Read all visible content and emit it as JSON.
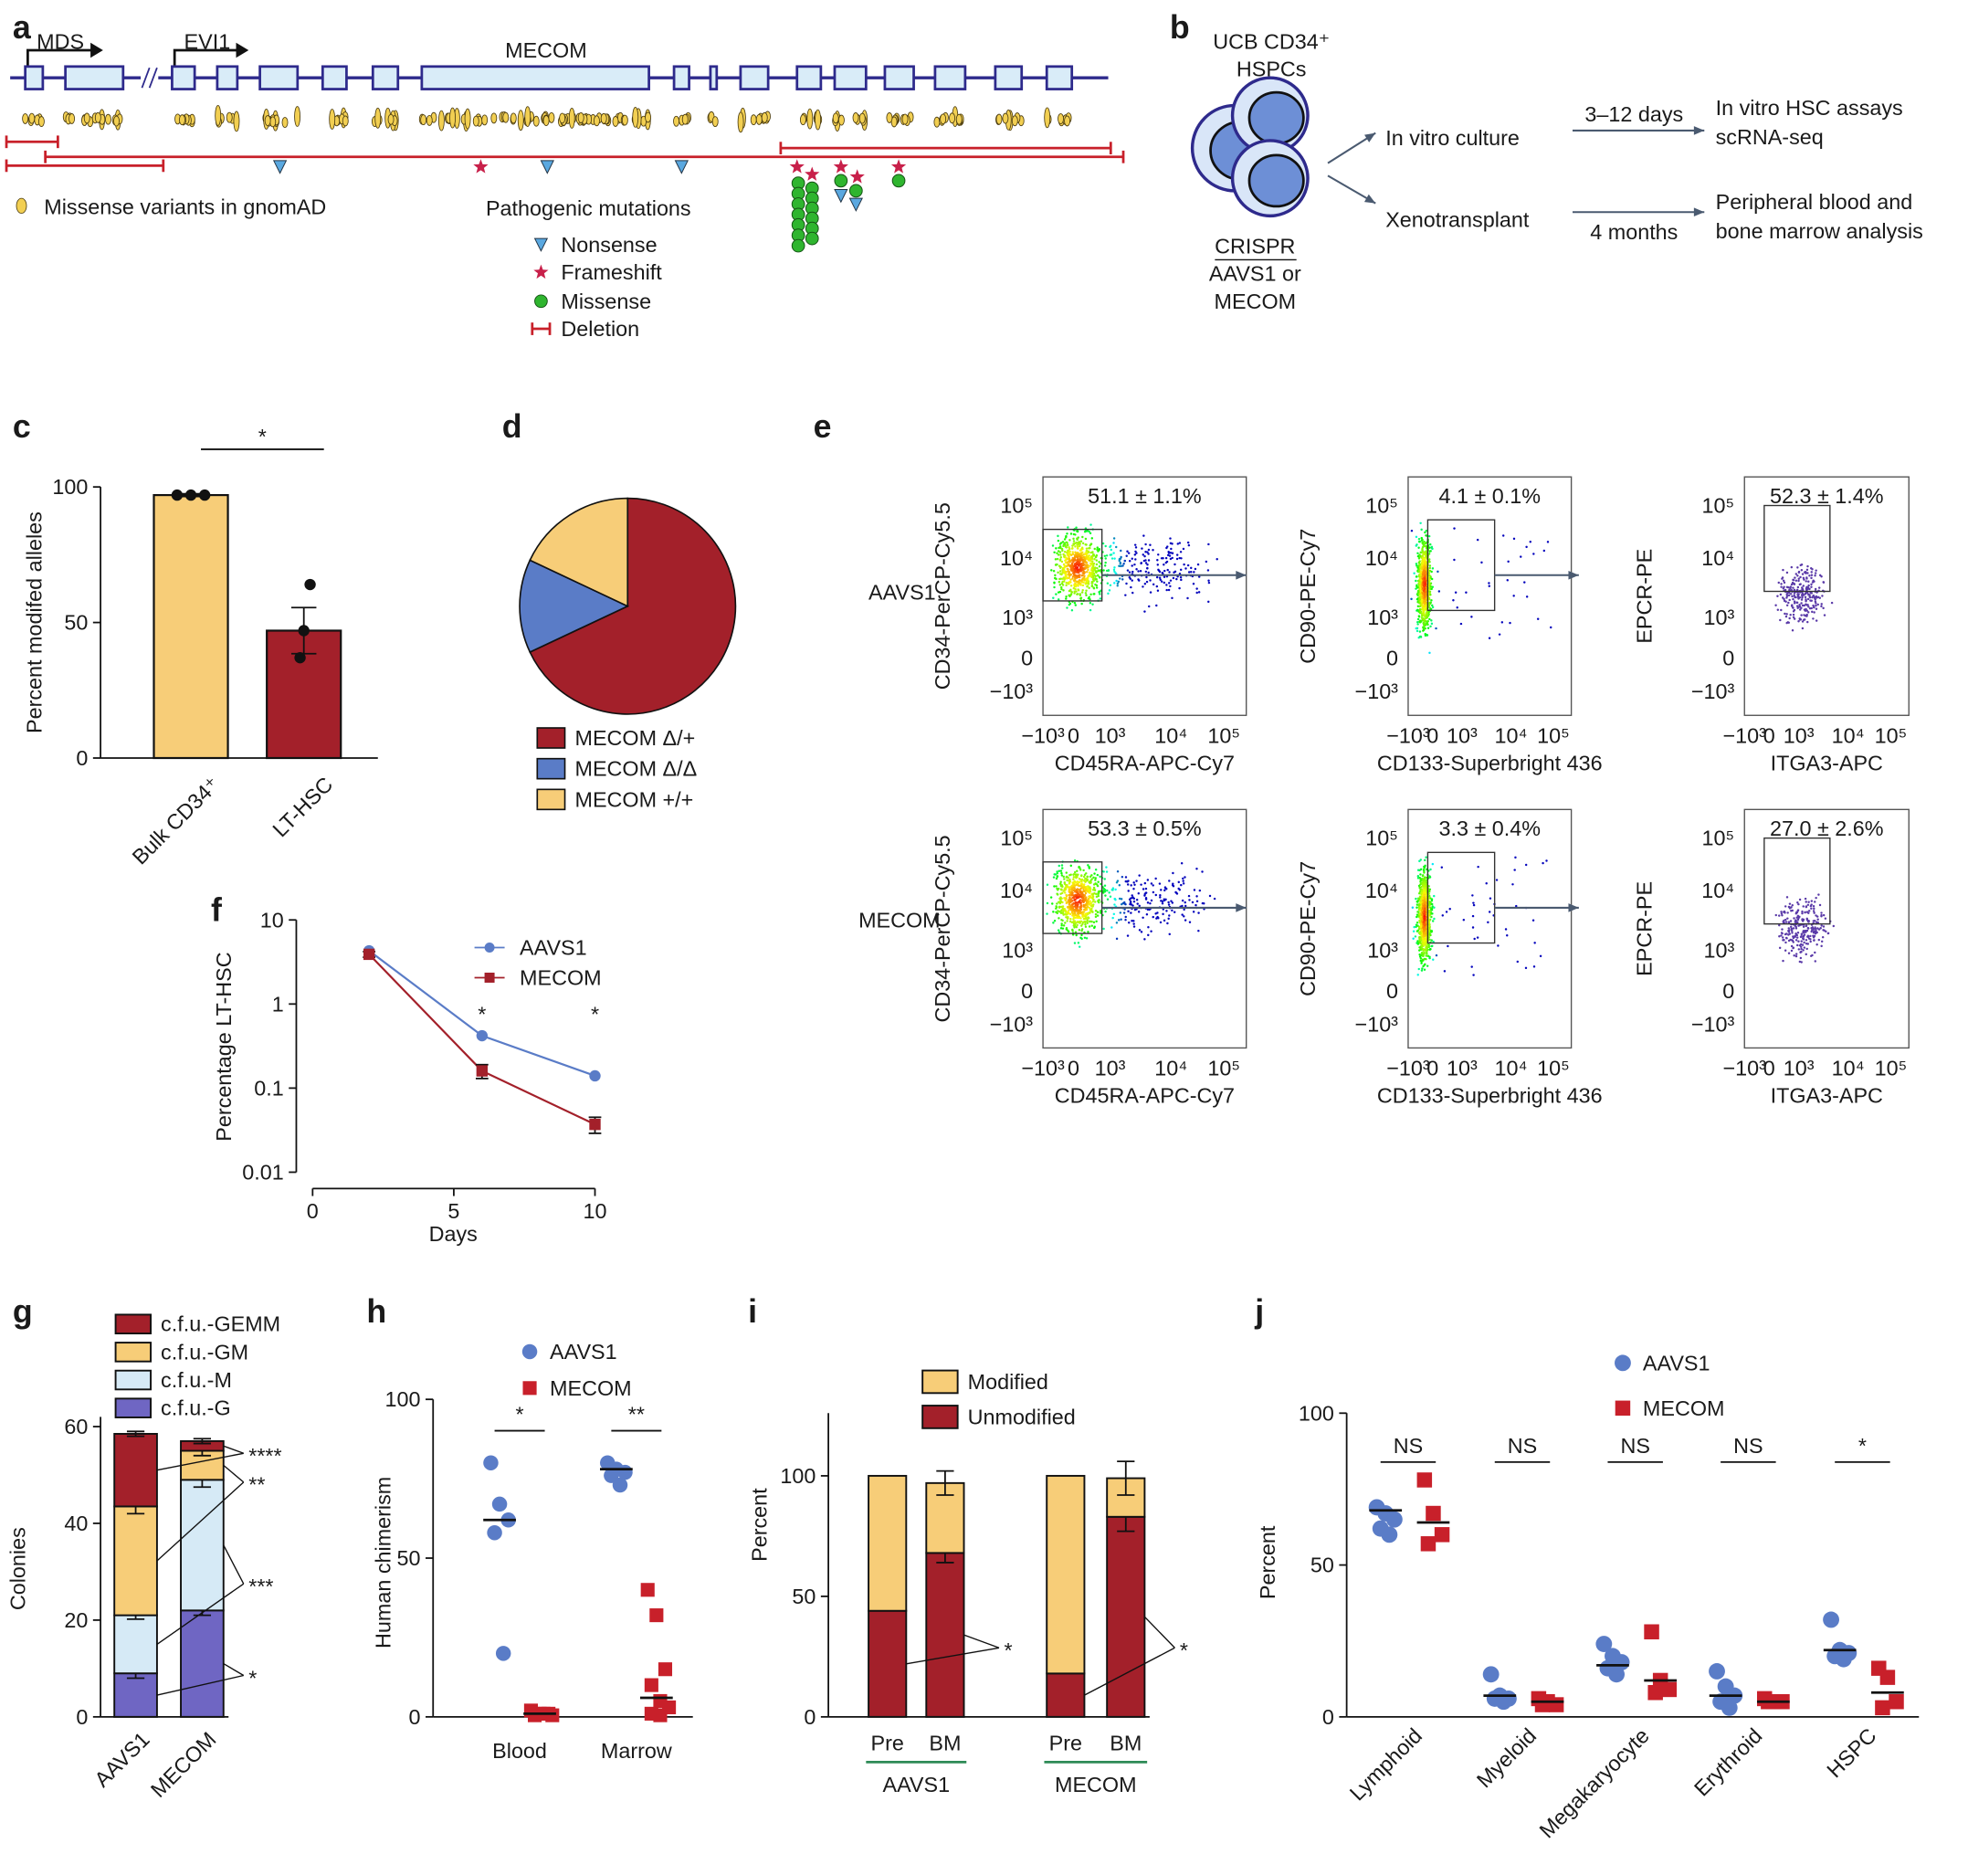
{
  "panel_labels": [
    "a",
    "b",
    "c",
    "d",
    "e",
    "f",
    "g",
    "h",
    "i",
    "j"
  ],
  "gene_diagram": {
    "promoters": [
      "MDS",
      "EVI1"
    ],
    "gene": "MECOM",
    "variant_legend": "Missense variants in gnomAD",
    "mutation_legend_title": "Pathogenic mutations",
    "mutation_types": [
      "Nonsense",
      "Frameshift",
      "Missense",
      "Deletion"
    ]
  },
  "workflow": {
    "source": [
      "UCB CD34⁺",
      "HSPCs"
    ],
    "editing": [
      "CRISPR",
      "AAVS1 or",
      "MECOM"
    ],
    "arms": [
      {
        "name": "In vitro culture",
        "duration": "3–12 days",
        "readout": [
          "In vitro HSC assays",
          "scRNA-seq"
        ]
      },
      {
        "name": "Xenotransplant",
        "duration": "4 months",
        "readout": [
          "Peripheral blood and",
          "bone marrow analysis"
        ]
      }
    ]
  },
  "flow": {
    "tick_labels": [
      "−10³",
      "0",
      "10³",
      "10⁴",
      "10⁵"
    ],
    "rows": [
      {
        "label": "AAVS1",
        "plots": [
          {
            "gate": "51.1 ± 1.1%",
            "x_label": "CD45RA-APC-Cy7",
            "y_label": "CD34-PerCP-Cy5.5"
          },
          {
            "gate": "4.1 ± 0.1%",
            "x_label": "CD133-Superbright 436",
            "y_label": "CD90-PE-Cy7"
          },
          {
            "gate": "52.3 ± 1.4%",
            "x_label": "ITGA3-APC",
            "y_label": "EPCR-PE"
          }
        ]
      },
      {
        "label": "MECOM",
        "plots": [
          {
            "gate": "53.3 ± 0.5%",
            "x_label": "CD45RA-APC-Cy7",
            "y_label": "CD34-PerCP-Cy5.5"
          },
          {
            "gate": "3.3 ± 0.4%",
            "x_label": "CD133-Superbright 436",
            "y_label": "CD90-PE-Cy7"
          },
          {
            "gate": "27.0 ± 2.6%",
            "x_label": "ITGA3-APC",
            "y_label": "EPCR-PE"
          }
        ]
      }
    ]
  },
  "chart_data": [
    {
      "type": "bar",
      "y_label": "Percent modifed alleles",
      "categories": [
        "Bulk CD34⁺",
        "LT-HSC"
      ],
      "values": [
        97,
        47
      ],
      "errors": [
        0.5,
        8.5
      ],
      "points": [
        [
          97,
          97,
          97
        ],
        [
          64,
          47,
          37
        ]
      ],
      "colors": [
        "#f7cd78",
        "#a3202a"
      ],
      "ylim": [
        0,
        100
      ],
      "yticks": [
        0,
        50,
        100
      ],
      "annotations": [
        "*"
      ]
    },
    {
      "type": "pie",
      "labels": [
        "MECOM Δ/+",
        "MECOM Δ/Δ",
        "MECOM +/+"
      ],
      "values": [
        68,
        14,
        18
      ],
      "colors": [
        "#a3202a",
        "#5a7cc7",
        "#f7cd78"
      ]
    },
    {
      "type": "line",
      "x_label": "Days",
      "y_label": "Percentage LT-HSC",
      "x": [
        2,
        6,
        10
      ],
      "series": [
        {
          "name": "AAVS1",
          "color": "#5a7cc7",
          "marker": "circle",
          "values": [
            4.3,
            0.42,
            0.14
          ]
        },
        {
          "name": "MECOM",
          "color": "#a3202a",
          "marker": "square",
          "values": [
            3.9,
            0.16,
            0.037
          ],
          "errors": [
            0.3,
            0.03,
            0.008
          ]
        }
      ],
      "xlim": [
        0,
        10
      ],
      "xticks": [
        0,
        5,
        10
      ],
      "ylim": [
        0.01,
        10
      ],
      "yticks": [
        0.01,
        0.1,
        1,
        10
      ],
      "log_y": true,
      "annotations": [
        "*",
        "*"
      ]
    },
    {
      "type": "stacked_bar",
      "y_label": "Colonies",
      "categories": [
        "AAVS1",
        "MECOM"
      ],
      "series": [
        {
          "name": "c.f.u.-GEMM",
          "color": "#a3202a",
          "values": [
            15,
            2
          ],
          "errors": [
            0.5,
            0.5
          ]
        },
        {
          "name": "c.f.u.-GM",
          "color": "#f7cd78",
          "values": [
            22.5,
            6
          ],
          "errors": [
            1.5,
            1
          ]
        },
        {
          "name": "c.f.u.-M",
          "color": "#d6eaf6",
          "values": [
            12,
            27
          ],
          "errors": [
            0.8,
            1.5
          ]
        },
        {
          "name": "c.f.u.-G",
          "color": "#6f66c3",
          "values": [
            9,
            22
          ],
          "errors": [
            1,
            1
          ]
        }
      ],
      "ylim": [
        0,
        62
      ],
      "yticks": [
        0,
        20,
        40,
        60
      ],
      "annotations": [
        "****",
        "**",
        "***",
        "*"
      ]
    },
    {
      "type": "dot",
      "y_label": "Human chimerism",
      "categories": [
        "Blood",
        "Marrow"
      ],
      "series": [
        {
          "name": "AAVS1",
          "color": "#5a7cc7",
          "marker": "circle",
          "points": [
            [
              80,
              67,
              62,
              58,
              20
            ],
            [
              80,
              78,
              77,
              76,
              73
            ]
          ],
          "means": [
            62,
            78
          ]
        },
        {
          "name": "MECOM",
          "color": "#c8202a",
          "marker": "square",
          "points": [
            [
              2,
              1,
              1,
              0.5,
              1,
              0.5
            ],
            [
              40,
              32,
              15,
              10,
              5,
              3,
              1,
              0.5
            ]
          ],
          "means": [
            1,
            6
          ]
        }
      ],
      "ylim": [
        0,
        100
      ],
      "yticks": [
        0,
        50,
        100
      ],
      "annotations": [
        "*",
        "**"
      ]
    },
    {
      "type": "stacked_bar",
      "y_label": "Percent",
      "categories": [
        "Pre",
        "BM",
        "Pre",
        "BM"
      ],
      "groups": [
        "AAVS1",
        "MECOM"
      ],
      "series": [
        {
          "name": "Modified",
          "color": "#f7cd78",
          "values": [
            56,
            29,
            82,
            16
          ],
          "errors": [
            null,
            5,
            null,
            7
          ]
        },
        {
          "name": "Unmodified",
          "color": "#a3202a",
          "values": [
            44,
            68,
            18,
            83
          ],
          "errors": [
            null,
            4,
            null,
            6
          ]
        }
      ],
      "ylim": [
        0,
        126
      ],
      "yticks": [
        0,
        50,
        100
      ],
      "annotations": [
        "*",
        "*"
      ]
    },
    {
      "type": "dot",
      "y_label": "Percent",
      "categories": [
        "Lymphoid",
        "Myeloid",
        "Megakaryocyte",
        "Erythroid",
        "HSPC"
      ],
      "series": [
        {
          "name": "AAVS1",
          "color": "#5a7cc7",
          "marker": "circle",
          "points": [
            [
              69,
              67,
              65,
              62,
              60
            ],
            [
              14,
              7,
              6,
              6,
              5
            ],
            [
              24,
              20,
              18,
              16,
              14
            ],
            [
              15,
              10,
              7,
              5,
              3
            ],
            [
              32,
              22,
              21,
              20,
              19
            ]
          ],
          "means": [
            68,
            7,
            17,
            7,
            22
          ]
        },
        {
          "name": "MECOM",
          "color": "#c8202a",
          "marker": "square",
          "points": [
            [
              78,
              67,
              60,
              57
            ],
            [
              6,
              5,
              4,
              4
            ],
            [
              28,
              12,
              9,
              8
            ],
            [
              6,
              5,
              5,
              5
            ],
            [
              16,
              13,
              5,
              3
            ]
          ],
          "means": [
            64,
            5,
            12,
            5,
            8
          ]
        }
      ],
      "ylim": [
        0,
        100
      ],
      "yticks": [
        0,
        50,
        100
      ],
      "annotations": [
        "NS",
        "NS",
        "NS",
        "NS",
        "*"
      ]
    }
  ]
}
